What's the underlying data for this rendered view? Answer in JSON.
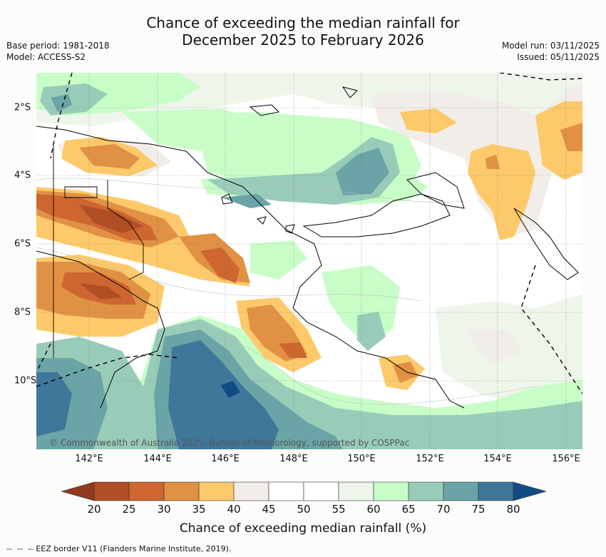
{
  "title_line1": "Chance of exceeding the median rainfall for",
  "title_line2": "December 2025 to February 2026",
  "base_period": "Base period: 1981-2018",
  "model": "Model: ACCESS-S2",
  "model_run": "Model run: 03/11/2025",
  "issued": "Issued: 05/11/2025",
  "copyright": "© Commonwealth of Australia 2025, Bureau of Meteorology, supported by COSPPac",
  "lat_labels": [
    "2°S",
    "4°S",
    "6°S",
    "8°S",
    "10°S"
  ],
  "lon_labels": [
    "142°E",
    "144°E",
    "146°E",
    "148°E",
    "150°E",
    "152°E",
    "154°E",
    "156°E"
  ],
  "colorbar": {
    "title": "Chance of exceeding median rainfall (%)",
    "ticks": [
      "20",
      "25",
      "30",
      "35",
      "40",
      "45",
      "50",
      "55",
      "60",
      "65",
      "70",
      "75",
      "80"
    ],
    "colors": [
      "#b04e25",
      "#cd6631",
      "#e09144",
      "#fdc96a",
      "#f2ede8",
      "#ffffff",
      "#ffffff",
      "#eef6ec",
      "#c8fdc8",
      "#99ccb8",
      "#6aa4a6",
      "#3f779a"
    ],
    "under_color": "#8f3a1d",
    "over_color": "#124a83"
  },
  "legend_text": "-- EEZ border V11 (Flanders Marine Institute, 2019)."
}
